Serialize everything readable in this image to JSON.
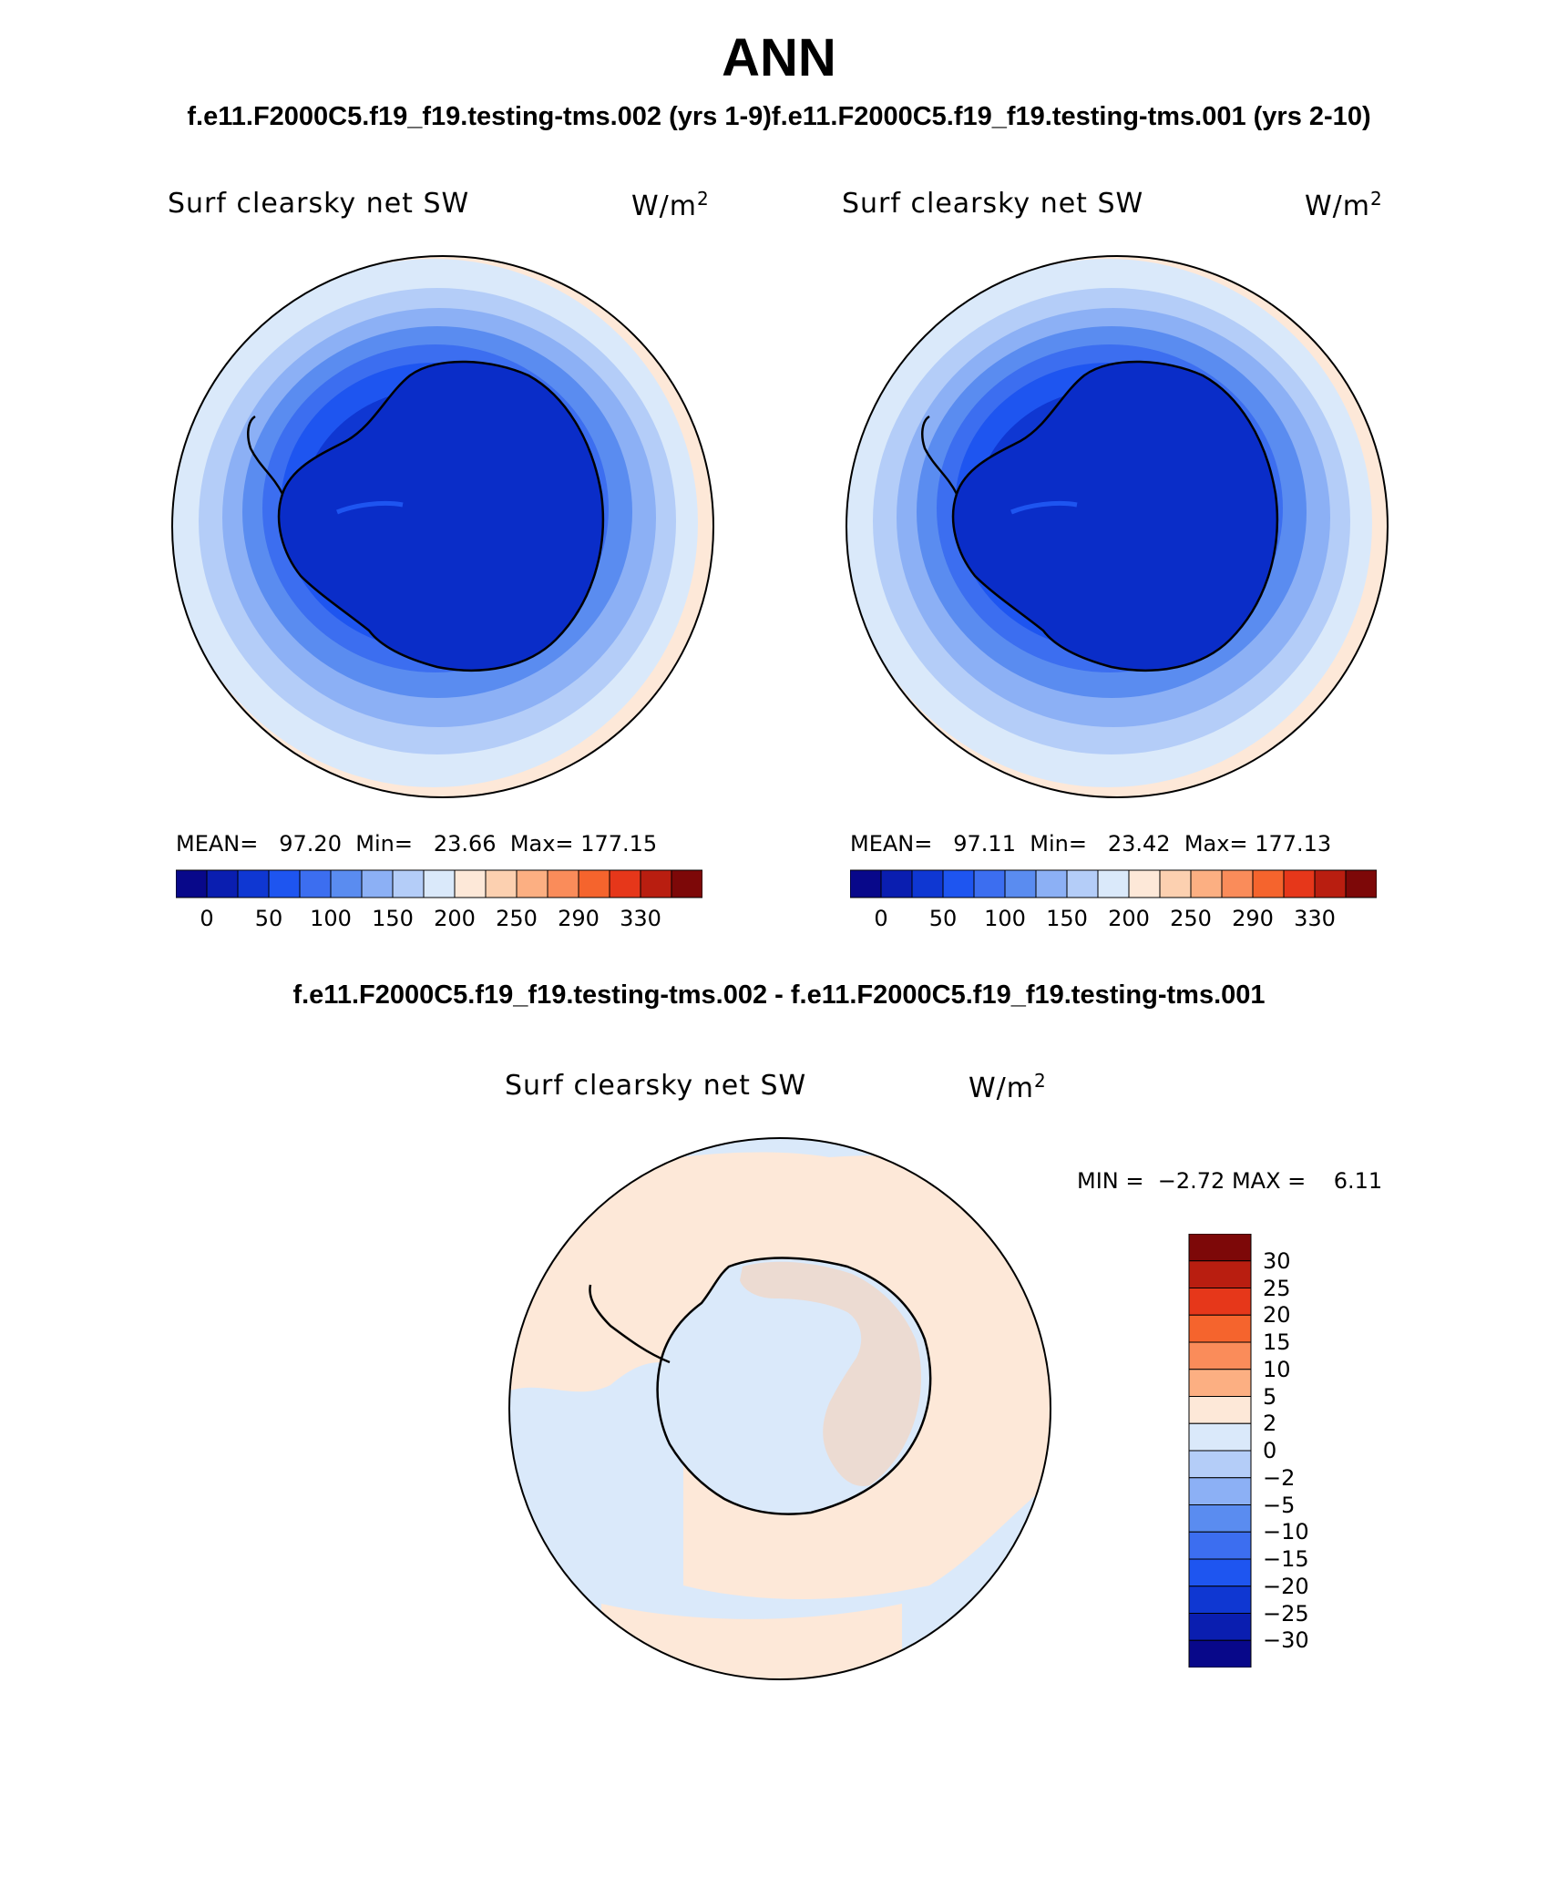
{
  "title": "ANN",
  "case_titles": "f.e11.F2000C5.f19_f19.testing-tms.002 (yrs 1-9)f.e11.F2000C5.f19_f19.testing-tms.001 (yrs 2-10)",
  "diff_title": "f.e11.F2000C5.f19_f19.testing-tms.002 - f.e11.F2000C5.f19_f19.testing-tms.001",
  "variable": "Surf clearsky net SW",
  "units_base": "W/m",
  "units_sup": "2",
  "panels": [
    {
      "id": "test",
      "mean_label": "MEAN=",
      "mean": "97.20",
      "min_label": "Min=",
      "min": "23.66",
      "max_label": "Max=",
      "max": "177.15"
    },
    {
      "id": "control",
      "mean_label": "MEAN=",
      "mean": "97.11",
      "min_label": "Min=",
      "min": "23.42",
      "max_label": "Max=",
      "max": "177.13"
    }
  ],
  "diff_stats": {
    "min_label": "MIN =",
    "min": "−2.72",
    "max_label": "MAX =",
    "max": "6.11"
  },
  "colorbar_main": {
    "colors": [
      "#08088a",
      "#0a1eb0",
      "#0f37d2",
      "#1e55f0",
      "#3c6ef0",
      "#5a8cf0",
      "#8cb0f5",
      "#b4cdf8",
      "#dae9fa",
      "#fde8d8",
      "#fcd0b0",
      "#fcaf82",
      "#fa8c5a",
      "#f5642d",
      "#e6371a",
      "#b91e10",
      "#7d0808"
    ],
    "ticks": [
      "0",
      "50",
      "100",
      "150",
      "200",
      "250",
      "290",
      "330"
    ]
  },
  "colorbar_diff": {
    "colors": [
      "#7d0808",
      "#b91e10",
      "#e6371a",
      "#f5642d",
      "#fa8c5a",
      "#fcaf82",
      "#fde8d8",
      "#dae9fa",
      "#b4cdf8",
      "#8cb0f5",
      "#5a8cf0",
      "#3c6ef0",
      "#1e55f0",
      "#0f37d2",
      "#0a1eb0",
      "#08088a"
    ],
    "ticks": [
      "30",
      "25",
      "20",
      "15",
      "10",
      "5",
      "2",
      "0",
      "−2",
      "−5",
      "−10",
      "−15",
      "−20",
      "−25",
      "−30"
    ]
  }
}
